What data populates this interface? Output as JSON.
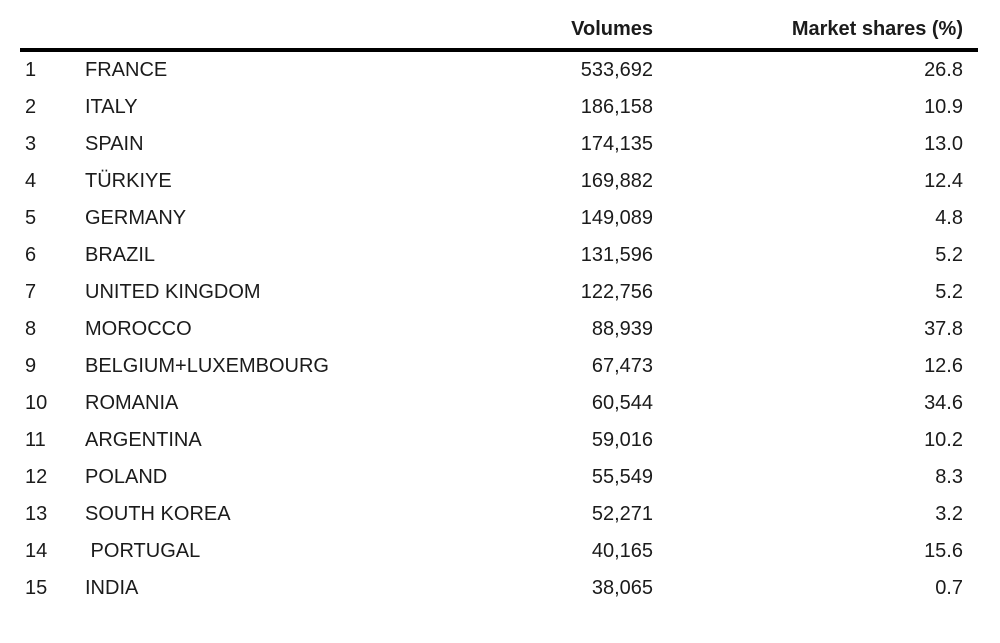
{
  "page": {
    "background_color": "#ffffff",
    "text_color": "#1b1b1b",
    "rule_color": "#000000"
  },
  "table": {
    "columns": [
      {
        "key": "rank",
        "label": ""
      },
      {
        "key": "country",
        "label": ""
      },
      {
        "key": "volumes",
        "label": "Volumes"
      },
      {
        "key": "market_share",
        "label": "Market shares (%)"
      }
    ],
    "rows": [
      {
        "rank": "1",
        "country": "FRANCE",
        "volumes": "533,692",
        "market_share": "26.8"
      },
      {
        "rank": "2",
        "country": "ITALY",
        "volumes": "186,158",
        "market_share": "10.9"
      },
      {
        "rank": "3",
        "country": "SPAIN",
        "volumes": "174,135",
        "market_share": "13.0"
      },
      {
        "rank": "4",
        "country": "TÜRKIYE",
        "volumes": "169,882",
        "market_share": "12.4"
      },
      {
        "rank": "5",
        "country": "GERMANY",
        "volumes": "149,089",
        "market_share": "4.8"
      },
      {
        "rank": "6",
        "country": "BRAZIL",
        "volumes": "131,596",
        "market_share": "5.2"
      },
      {
        "rank": "7",
        "country": "UNITED KINGDOM",
        "volumes": "122,756",
        "market_share": "5.2"
      },
      {
        "rank": "8",
        "country": "MOROCCO",
        "volumes": "88,939",
        "market_share": "37.8"
      },
      {
        "rank": "9",
        "country": "BELGIUM+LUXEMBOURG",
        "volumes": "67,473",
        "market_share": "12.6"
      },
      {
        "rank": "10",
        "country": "ROMANIA",
        "volumes": "60,544",
        "market_share": "34.6"
      },
      {
        "rank": "11",
        "country": "ARGENTINA",
        "volumes": "59,016",
        "market_share": "10.2"
      },
      {
        "rank": "12",
        "country": "POLAND",
        "volumes": "55,549",
        "market_share": "8.3"
      },
      {
        "rank": "13",
        "country": "SOUTH KOREA",
        "volumes": "52,271",
        "market_share": "3.2"
      },
      {
        "rank": "14",
        "country": " PORTUGAL",
        "volumes": "40,165",
        "market_share": "15.6"
      },
      {
        "rank": "15",
        "country": "INDIA",
        "volumes": "38,065",
        "market_share": "0.7"
      }
    ]
  }
}
